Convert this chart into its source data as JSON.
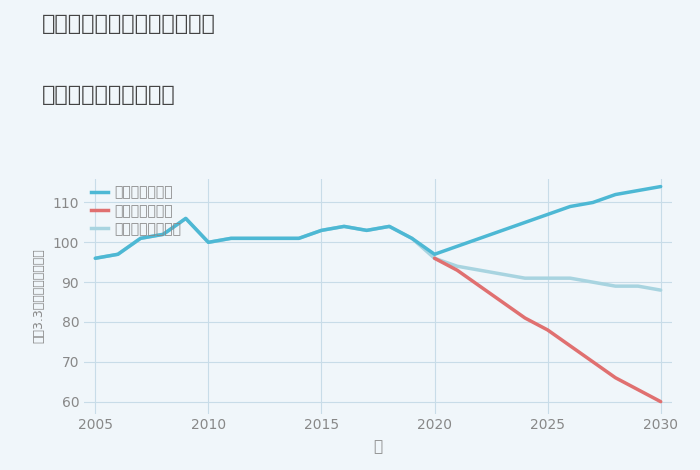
{
  "title_line1": "兵庫県姫路市野里東同心町の",
  "title_line2": "中古戸建ての価格推移",
  "xlabel": "年",
  "ylabel": "坪（3.3㎡）単価（万円）",
  "ylim": [
    57,
    116
  ],
  "xlim": [
    2004.5,
    2030.5
  ],
  "yticks": [
    60,
    70,
    80,
    90,
    100,
    110
  ],
  "xticks": [
    2005,
    2010,
    2015,
    2020,
    2025,
    2030
  ],
  "good_scenario": {
    "label": "グッドシナリオ",
    "color": "#4db8d4",
    "x": [
      2005,
      2006,
      2007,
      2008,
      2009,
      2010,
      2011,
      2012,
      2013,
      2014,
      2015,
      2016,
      2017,
      2018,
      2019,
      2020,
      2021,
      2022,
      2023,
      2024,
      2025,
      2026,
      2027,
      2028,
      2029,
      2030
    ],
    "y": [
      96,
      97,
      101,
      102,
      106,
      100,
      101,
      101,
      101,
      101,
      103,
      104,
      103,
      104,
      101,
      97,
      99,
      101,
      103,
      105,
      107,
      109,
      110,
      112,
      113,
      114
    ],
    "linewidth": 2.5
  },
  "bad_scenario": {
    "label": "バッドシナリオ",
    "color": "#e07070",
    "x": [
      2020,
      2021,
      2022,
      2023,
      2024,
      2025,
      2026,
      2027,
      2028,
      2029,
      2030
    ],
    "y": [
      96,
      93,
      89,
      85,
      81,
      78,
      74,
      70,
      66,
      63,
      60
    ],
    "linewidth": 2.5
  },
  "normal_scenario": {
    "label": "ノーマルシナリオ",
    "color": "#a8d4e0",
    "x": [
      2005,
      2006,
      2007,
      2008,
      2009,
      2010,
      2011,
      2012,
      2013,
      2014,
      2015,
      2016,
      2017,
      2018,
      2019,
      2020,
      2021,
      2022,
      2023,
      2024,
      2025,
      2026,
      2027,
      2028,
      2029,
      2030
    ],
    "y": [
      96,
      97,
      101,
      102,
      106,
      100,
      101,
      101,
      101,
      101,
      103,
      104,
      103,
      104,
      101,
      96,
      94,
      93,
      92,
      91,
      91,
      91,
      90,
      89,
      89,
      88
    ],
    "linewidth": 2.5
  },
  "background_color": "#f0f6fa",
  "grid_color": "#c8dce8",
  "title_color": "#444444",
  "axis_color": "#888888",
  "legend_fontsize": 10,
  "title_fontsize": 16
}
